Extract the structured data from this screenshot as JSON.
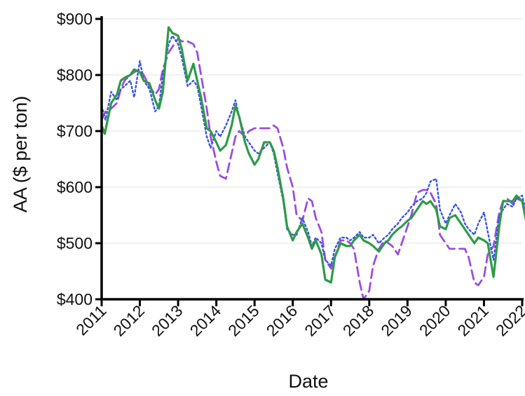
{
  "chart_data": {
    "type": "line",
    "title": "",
    "xlabel": "Date",
    "ylabel": "AA ($ per ton)",
    "xlim": [
      2011,
      2022
    ],
    "ylim": [
      400,
      900
    ],
    "x_ticks": [
      2011,
      2012,
      2013,
      2014,
      2015,
      2016,
      2017,
      2018,
      2019,
      2020,
      2021,
      2022
    ],
    "x_tick_labels": [
      "2011",
      "2012",
      "2013",
      "2014",
      "2015",
      "2016",
      "2017",
      "2018",
      "2019",
      "2020",
      "2021",
      "2022"
    ],
    "y_ticks": [
      400,
      500,
      600,
      700,
      800,
      900
    ],
    "y_tick_labels": [
      "$400",
      "$500",
      "$600",
      "$700",
      "$800",
      "$900"
    ],
    "grid": "horizontal",
    "legend": "none",
    "series": [
      {
        "color": "#2e9a47",
        "style": "solid",
        "points": [
          [
            2011.0,
            710
          ],
          [
            2011.08,
            695
          ],
          [
            2011.25,
            750
          ],
          [
            2011.4,
            765
          ],
          [
            2011.5,
            790
          ],
          [
            2011.6,
            795
          ],
          [
            2011.75,
            800
          ],
          [
            2011.85,
            810
          ],
          [
            2012.0,
            805
          ],
          [
            2012.1,
            790
          ],
          [
            2012.25,
            785
          ],
          [
            2012.4,
            755
          ],
          [
            2012.5,
            740
          ],
          [
            2012.6,
            770
          ],
          [
            2012.75,
            885
          ],
          [
            2012.85,
            875
          ],
          [
            2013.0,
            870
          ],
          [
            2013.1,
            845
          ],
          [
            2013.25,
            790
          ],
          [
            2013.4,
            820
          ],
          [
            2013.5,
            790
          ],
          [
            2013.6,
            760
          ],
          [
            2013.75,
            705
          ],
          [
            2013.85,
            700
          ],
          [
            2014.0,
            680
          ],
          [
            2014.1,
            665
          ],
          [
            2014.25,
            675
          ],
          [
            2014.4,
            710
          ],
          [
            2014.5,
            745
          ],
          [
            2014.6,
            725
          ],
          [
            2014.75,
            680
          ],
          [
            2014.85,
            660
          ],
          [
            2015.0,
            640
          ],
          [
            2015.1,
            650
          ],
          [
            2015.25,
            680
          ],
          [
            2015.4,
            680
          ],
          [
            2015.5,
            665
          ],
          [
            2015.6,
            635
          ],
          [
            2015.75,
            580
          ],
          [
            2015.85,
            530
          ],
          [
            2016.0,
            505
          ],
          [
            2016.1,
            520
          ],
          [
            2016.25,
            535
          ],
          [
            2016.4,
            510
          ],
          [
            2016.5,
            490
          ],
          [
            2016.6,
            505
          ],
          [
            2016.75,
            480
          ],
          [
            2016.85,
            435
          ],
          [
            2017.0,
            430
          ],
          [
            2017.1,
            475
          ],
          [
            2017.25,
            500
          ],
          [
            2017.4,
            495
          ],
          [
            2017.5,
            495
          ],
          [
            2017.6,
            505
          ],
          [
            2017.75,
            515
          ],
          [
            2017.85,
            505
          ],
          [
            2018.0,
            500
          ],
          [
            2018.1,
            495
          ],
          [
            2018.25,
            485
          ],
          [
            2018.4,
            500
          ],
          [
            2018.5,
            505
          ],
          [
            2018.6,
            515
          ],
          [
            2018.75,
            525
          ],
          [
            2018.85,
            530
          ],
          [
            2019.0,
            540
          ],
          [
            2019.1,
            545
          ],
          [
            2019.25,
            560
          ],
          [
            2019.4,
            575
          ],
          [
            2019.5,
            570
          ],
          [
            2019.6,
            575
          ],
          [
            2019.75,
            560
          ],
          [
            2019.85,
            530
          ],
          [
            2020.0,
            525
          ],
          [
            2020.1,
            545
          ],
          [
            2020.25,
            550
          ],
          [
            2020.4,
            535
          ],
          [
            2020.5,
            525
          ],
          [
            2020.6,
            515
          ],
          [
            2020.75,
            500
          ],
          [
            2020.85,
            510
          ],
          [
            2021.0,
            505
          ],
          [
            2021.1,
            500
          ],
          [
            2021.25,
            440
          ],
          [
            2021.4,
            530
          ],
          [
            2021.5,
            575
          ],
          [
            2021.6,
            575
          ],
          [
            2021.75,
            575
          ],
          [
            2021.85,
            585
          ],
          [
            2022.0,
            575
          ],
          [
            2022.1,
            540
          ]
        ]
      },
      {
        "color": "#9b4de0",
        "style": "dashed",
        "points": [
          [
            2011.0,
            720
          ],
          [
            2011.1,
            735
          ],
          [
            2011.25,
            740
          ],
          [
            2011.4,
            750
          ],
          [
            2011.5,
            775
          ],
          [
            2011.6,
            790
          ],
          [
            2011.75,
            800
          ],
          [
            2011.85,
            805
          ],
          [
            2012.0,
            810
          ],
          [
            2012.1,
            800
          ],
          [
            2012.25,
            780
          ],
          [
            2012.4,
            765
          ],
          [
            2012.5,
            775
          ],
          [
            2012.6,
            810
          ],
          [
            2012.75,
            840
          ],
          [
            2012.85,
            850
          ],
          [
            2013.0,
            865
          ],
          [
            2013.1,
            860
          ],
          [
            2013.25,
            860
          ],
          [
            2013.4,
            855
          ],
          [
            2013.5,
            840
          ],
          [
            2013.6,
            800
          ],
          [
            2013.75,
            740
          ],
          [
            2013.85,
            690
          ],
          [
            2014.0,
            645
          ],
          [
            2014.1,
            620
          ],
          [
            2014.25,
            615
          ],
          [
            2014.4,
            660
          ],
          [
            2014.5,
            690
          ],
          [
            2014.6,
            700
          ],
          [
            2014.75,
            690
          ],
          [
            2014.85,
            700
          ],
          [
            2015.0,
            705
          ],
          [
            2015.1,
            705
          ],
          [
            2015.25,
            705
          ],
          [
            2015.4,
            705
          ],
          [
            2015.5,
            710
          ],
          [
            2015.6,
            705
          ],
          [
            2015.75,
            670
          ],
          [
            2015.85,
            635
          ],
          [
            2016.0,
            600
          ],
          [
            2016.1,
            550
          ],
          [
            2016.25,
            540
          ],
          [
            2016.4,
            580
          ],
          [
            2016.5,
            575
          ],
          [
            2016.6,
            545
          ],
          [
            2016.75,
            520
          ],
          [
            2016.85,
            470
          ],
          [
            2017.0,
            455
          ],
          [
            2017.1,
            475
          ],
          [
            2017.25,
            505
          ],
          [
            2017.4,
            505
          ],
          [
            2017.5,
            500
          ],
          [
            2017.6,
            490
          ],
          [
            2017.75,
            430
          ],
          [
            2017.85,
            400
          ],
          [
            2018.0,
            415
          ],
          [
            2018.1,
            460
          ],
          [
            2018.25,
            490
          ],
          [
            2018.4,
            505
          ],
          [
            2018.5,
            500
          ],
          [
            2018.6,
            495
          ],
          [
            2018.75,
            480
          ],
          [
            2018.85,
            500
          ],
          [
            2019.0,
            530
          ],
          [
            2019.1,
            550
          ],
          [
            2019.25,
            590
          ],
          [
            2019.4,
            595
          ],
          [
            2019.5,
            595
          ],
          [
            2019.6,
            590
          ],
          [
            2019.75,
            570
          ],
          [
            2019.85,
            515
          ],
          [
            2020.0,
            500
          ],
          [
            2020.1,
            490
          ],
          [
            2020.25,
            490
          ],
          [
            2020.4,
            490
          ],
          [
            2020.5,
            490
          ],
          [
            2020.6,
            475
          ],
          [
            2020.75,
            430
          ],
          [
            2020.85,
            425
          ],
          [
            2021.0,
            440
          ],
          [
            2021.1,
            480
          ],
          [
            2021.25,
            495
          ],
          [
            2021.4,
            555
          ],
          [
            2021.5,
            575
          ],
          [
            2021.6,
            580
          ],
          [
            2021.75,
            570
          ],
          [
            2021.85,
            580
          ],
          [
            2022.0,
            575
          ],
          [
            2022.1,
            555
          ]
        ]
      },
      {
        "color": "#3a55e0",
        "style": "dotted",
        "points": [
          [
            2011.0,
            745
          ],
          [
            2011.1,
            720
          ],
          [
            2011.25,
            770
          ],
          [
            2011.4,
            755
          ],
          [
            2011.5,
            775
          ],
          [
            2011.6,
            780
          ],
          [
            2011.75,
            790
          ],
          [
            2011.85,
            760
          ],
          [
            2012.0,
            825
          ],
          [
            2012.1,
            790
          ],
          [
            2012.25,
            775
          ],
          [
            2012.4,
            735
          ],
          [
            2012.5,
            745
          ],
          [
            2012.6,
            800
          ],
          [
            2012.75,
            855
          ],
          [
            2012.85,
            870
          ],
          [
            2013.0,
            855
          ],
          [
            2013.1,
            830
          ],
          [
            2013.25,
            780
          ],
          [
            2013.4,
            790
          ],
          [
            2013.5,
            780
          ],
          [
            2013.6,
            745
          ],
          [
            2013.75,
            690
          ],
          [
            2013.85,
            670
          ],
          [
            2014.0,
            700
          ],
          [
            2014.1,
            690
          ],
          [
            2014.25,
            710
          ],
          [
            2014.4,
            735
          ],
          [
            2014.5,
            755
          ],
          [
            2014.6,
            725
          ],
          [
            2014.75,
            690
          ],
          [
            2014.85,
            680
          ],
          [
            2015.0,
            665
          ],
          [
            2015.1,
            660
          ],
          [
            2015.25,
            670
          ],
          [
            2015.4,
            680
          ],
          [
            2015.5,
            660
          ],
          [
            2015.6,
            625
          ],
          [
            2015.75,
            575
          ],
          [
            2015.85,
            525
          ],
          [
            2016.0,
            515
          ],
          [
            2016.1,
            515
          ],
          [
            2016.25,
            545
          ],
          [
            2016.4,
            520
          ],
          [
            2016.5,
            495
          ],
          [
            2016.6,
            510
          ],
          [
            2016.75,
            500
          ],
          [
            2016.85,
            470
          ],
          [
            2017.0,
            460
          ],
          [
            2017.1,
            490
          ],
          [
            2017.25,
            510
          ],
          [
            2017.4,
            510
          ],
          [
            2017.5,
            505
          ],
          [
            2017.6,
            510
          ],
          [
            2017.75,
            520
          ],
          [
            2017.85,
            510
          ],
          [
            2018.0,
            510
          ],
          [
            2018.1,
            515
          ],
          [
            2018.25,
            500
          ],
          [
            2018.4,
            510
          ],
          [
            2018.5,
            515
          ],
          [
            2018.6,
            525
          ],
          [
            2018.75,
            535
          ],
          [
            2018.85,
            545
          ],
          [
            2019.0,
            555
          ],
          [
            2019.1,
            565
          ],
          [
            2019.25,
            575
          ],
          [
            2019.4,
            580
          ],
          [
            2019.5,
            590
          ],
          [
            2019.6,
            610
          ],
          [
            2019.75,
            615
          ],
          [
            2019.85,
            560
          ],
          [
            2020.0,
            535
          ],
          [
            2020.1,
            550
          ],
          [
            2020.25,
            570
          ],
          [
            2020.4,
            555
          ],
          [
            2020.5,
            535
          ],
          [
            2020.6,
            525
          ],
          [
            2020.75,
            515
          ],
          [
            2020.85,
            535
          ],
          [
            2021.0,
            555
          ],
          [
            2021.1,
            520
          ],
          [
            2021.25,
            470
          ],
          [
            2021.4,
            550
          ],
          [
            2021.5,
            560
          ],
          [
            2021.6,
            570
          ],
          [
            2021.75,
            565
          ],
          [
            2021.85,
            580
          ],
          [
            2022.0,
            585
          ],
          [
            2022.1,
            555
          ]
        ]
      }
    ]
  }
}
